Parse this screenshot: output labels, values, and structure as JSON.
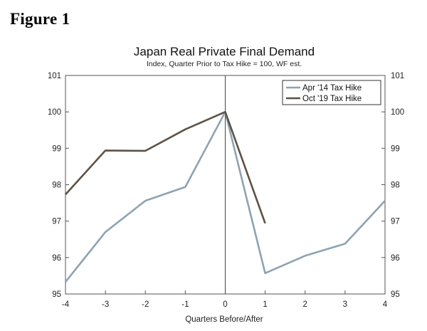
{
  "figure_label": "Figure 1",
  "chart_data": {
    "type": "line",
    "title": "Japan Real Private Final Demand",
    "subtitle": "Index, Quarter Prior to Tax Hike = 100, WF est.",
    "xlabel": "Quarters Before/After",
    "ylabel": "",
    "x": [
      -4,
      -3,
      -2,
      -1,
      0,
      1,
      2,
      3,
      4
    ],
    "xlim": [
      -4,
      4
    ],
    "ylim": [
      95,
      101
    ],
    "yticks": [
      95,
      96,
      97,
      98,
      99,
      100,
      101
    ],
    "xticks": [
      -4,
      -3,
      -2,
      -1,
      0,
      1,
      2,
      3,
      4
    ],
    "vline_at": 0,
    "legend_position": "top-right",
    "series": [
      {
        "name": "Apr '14 Tax Hike",
        "color": "#8da3b3",
        "x": [
          -4,
          -3,
          -2,
          -1,
          0,
          1,
          2,
          3,
          4
        ],
        "values": [
          95.33,
          96.7,
          97.56,
          97.94,
          100.0,
          95.57,
          96.05,
          96.38,
          97.56
        ]
      },
      {
        "name": "Oct '19 Tax Hike",
        "color": "#5e5246",
        "x": [
          -4,
          -3,
          -2,
          -1,
          0,
          1
        ],
        "values": [
          97.73,
          98.94,
          98.93,
          99.52,
          100.0,
          96.94
        ]
      }
    ]
  }
}
